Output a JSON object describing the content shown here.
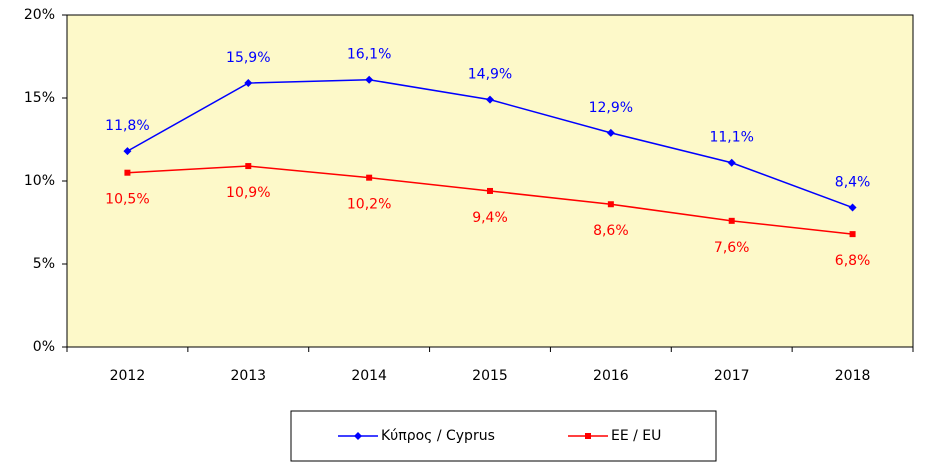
{
  "chart_data": {
    "type": "line",
    "categories": [
      "2012",
      "2013",
      "2014",
      "2015",
      "2016",
      "2017",
      "2018"
    ],
    "series": [
      {
        "name": "Κύπρος / Cyprus",
        "color": "#0000ff",
        "values": [
          11.8,
          15.9,
          16.1,
          14.9,
          12.9,
          11.1,
          8.4
        ],
        "value_labels": [
          "11,8%",
          "15,9%",
          "16,1%",
          "14,9%",
          "12,9%",
          "11,1%",
          "8,4%"
        ]
      },
      {
        "name": "ΕΕ / EU",
        "color": "#ff0000",
        "values": [
          10.5,
          10.9,
          10.2,
          9.4,
          8.6,
          7.6,
          6.8
        ],
        "value_labels": [
          "10,5%",
          "10,9%",
          "10,2%",
          "9,4%",
          "8,6%",
          "7,6%",
          "6,8%"
        ]
      }
    ],
    "ylim": [
      0,
      20
    ],
    "yticks": [
      {
        "value": 0,
        "label": "0%"
      },
      {
        "value": 5,
        "label": "5%"
      },
      {
        "value": 10,
        "label": "10%"
      },
      {
        "value": 15,
        "label": "15%"
      },
      {
        "value": 20,
        "label": "20%"
      }
    ],
    "plot_background": "#fdf9c9",
    "legend": "bottom"
  }
}
